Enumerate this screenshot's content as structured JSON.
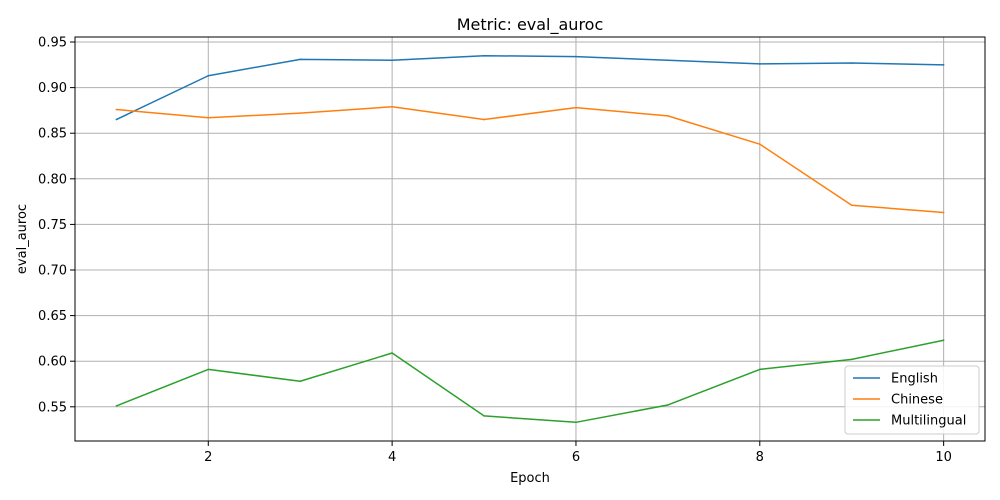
{
  "chart_data": {
    "type": "line",
    "title": "Metric: eval_auroc",
    "xlabel": "Epoch",
    "ylabel": "eval_auroc",
    "x": [
      1,
      2,
      3,
      4,
      5,
      6,
      7,
      8,
      9,
      10
    ],
    "xlim": [
      0.55,
      10.45
    ],
    "ylim": [
      0.5125,
      0.9555
    ],
    "xticks": [
      2,
      4,
      6,
      8,
      10
    ],
    "xtick_labels": [
      "2",
      "4",
      "6",
      "8",
      "10"
    ],
    "yticks": [
      0.55,
      0.6,
      0.65,
      0.7,
      0.75,
      0.8,
      0.85,
      0.9,
      0.95
    ],
    "ytick_labels": [
      "0.55",
      "0.60",
      "0.65",
      "0.70",
      "0.75",
      "0.80",
      "0.85",
      "0.90",
      "0.95"
    ],
    "grid": true,
    "legend_position": "lower-right",
    "series": [
      {
        "name": "English",
        "color": "#1f77b4",
        "values": [
          0.865,
          0.913,
          0.931,
          0.93,
          0.935,
          0.934,
          0.93,
          0.926,
          0.927,
          0.925
        ]
      },
      {
        "name": "Chinese",
        "color": "#ff7f0e",
        "values": [
          0.876,
          0.867,
          0.872,
          0.879,
          0.865,
          0.878,
          0.869,
          0.838,
          0.771,
          0.763
        ]
      },
      {
        "name": "Multilingual",
        "color": "#2ca02c",
        "values": [
          0.551,
          0.591,
          0.578,
          0.609,
          0.54,
          0.533,
          0.552,
          0.591,
          0.602,
          0.623
        ]
      }
    ]
  }
}
